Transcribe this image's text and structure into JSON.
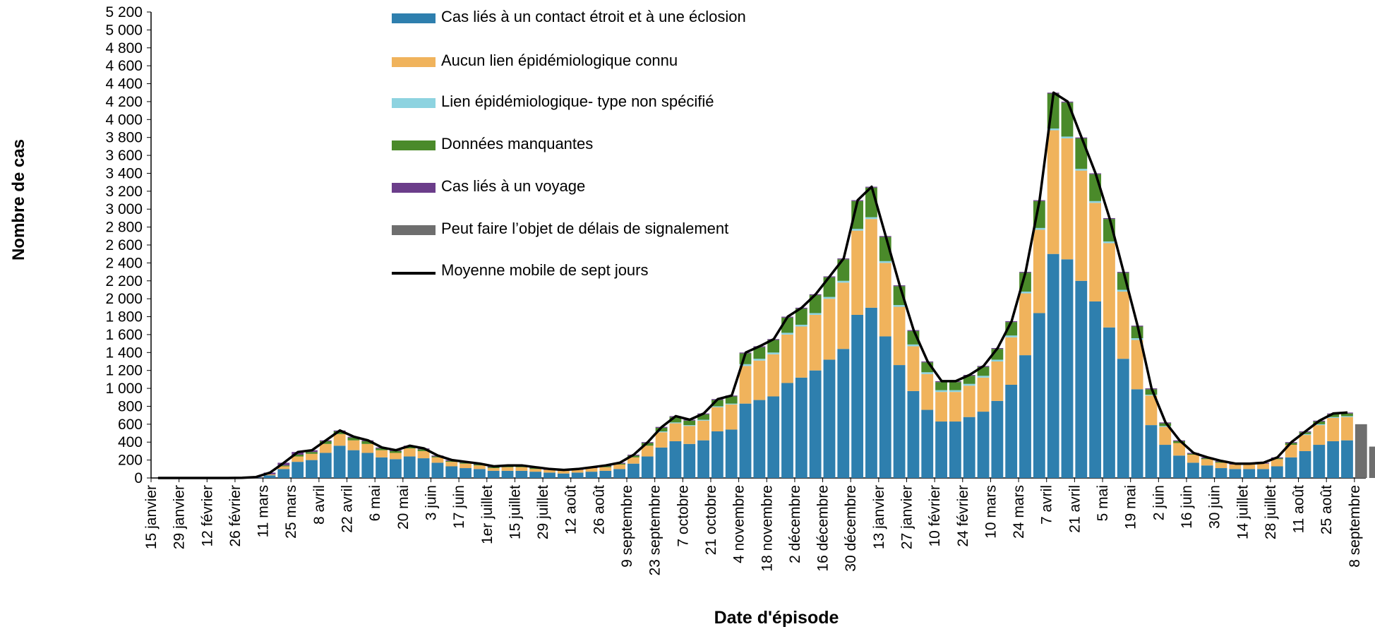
{
  "chart_data": {
    "type": "bar",
    "stacked": true,
    "grid": false,
    "y_label": "Nombre de cas",
    "x_label": "Date d'épisode",
    "ylim": [
      0,
      5200
    ],
    "yticks": [
      0,
      {
        "value": 200,
        "label": "200"
      },
      {
        "value": 400,
        "label": "400"
      },
      {
        "value": 600,
        "label": "600"
      },
      {
        "value": 800,
        "label": "800"
      },
      {
        "value": 1000,
        "label": "1 000"
      },
      {
        "value": 1200,
        "label": "1 200"
      },
      {
        "value": 1400,
        "label": "1 400"
      },
      {
        "value": 1600,
        "label": "1 600"
      },
      {
        "value": 1800,
        "label": "1 800"
      },
      {
        "value": 2000,
        "label": "2 000"
      },
      {
        "value": 2200,
        "label": "2 200"
      },
      {
        "value": 2400,
        "label": "2 400"
      },
      {
        "value": 2600,
        "label": "2 600"
      },
      {
        "value": 2800,
        "label": "2 800"
      },
      {
        "value": 3000,
        "label": "3 000"
      },
      {
        "value": 3200,
        "label": "3 200"
      },
      {
        "value": 3400,
        "label": "3 400"
      },
      {
        "value": 3600,
        "label": "3 600"
      },
      {
        "value": 3800,
        "label": "3 800"
      },
      {
        "value": 4000,
        "label": "4 000"
      },
      {
        "value": 4200,
        "label": "4 200"
      },
      {
        "value": 4400,
        "label": "4 400"
      },
      {
        "value": 4600,
        "label": "4 600"
      },
      {
        "value": 4800,
        "label": "4 800"
      },
      {
        "value": 5000,
        "label": "5 000"
      },
      {
        "value": 5200,
        "label": "5 200"
      }
    ],
    "categories": [
      "15 janvier",
      null,
      "29 janvier",
      null,
      "12 février",
      null,
      "26 février",
      null,
      "11 mars",
      null,
      "25 mars",
      null,
      "8 avril",
      null,
      "22 avril",
      null,
      "6 mai",
      null,
      "20 mai",
      null,
      "3 juin",
      null,
      "17 juin",
      null,
      "1er juillet",
      null,
      "15 juillet",
      null,
      "29 juillet",
      null,
      "12 août",
      null,
      "26 août",
      null,
      "9 septembre",
      null,
      "23 septembre",
      null,
      "7 octobre",
      null,
      "21 octobre",
      null,
      "4 novembre",
      null,
      "18 novembre",
      null,
      "2 décembre",
      null,
      "16 décembre",
      null,
      "30 décembre",
      null,
      "13 janvier",
      null,
      "27 janvier",
      null,
      "10 février",
      null,
      "24 février",
      null,
      "10 mars",
      null,
      "24 mars",
      null,
      "7 avril",
      null,
      "21 avril",
      null,
      "5 mai",
      null,
      "19 mai",
      null,
      "2 juin",
      null,
      "16 juin",
      null,
      "30 juin",
      null,
      "14 juillet",
      null,
      "28 juillet",
      null,
      "11 août",
      null,
      "25 août",
      null,
      "8 septembre",
      null
    ],
    "series": [
      {
        "name": "Cas liés à un contact étroit et à une éclosion",
        "color": "#2e7fae",
        "values": [
          0,
          0,
          0,
          0,
          0,
          0,
          2,
          5,
          30,
          100,
          180,
          200,
          280,
          360,
          310,
          280,
          230,
          210,
          240,
          220,
          170,
          130,
          110,
          100,
          80,
          80,
          80,
          70,
          60,
          50,
          60,
          70,
          80,
          100,
          160,
          240,
          340,
          410,
          380,
          420,
          520,
          540,
          830,
          870,
          910,
          1060,
          1120,
          1200,
          1320,
          1440,
          1820,
          1900,
          1580,
          1260,
          970,
          760,
          630,
          630,
          680,
          740,
          860,
          1040,
          1370,
          1840,
          2500,
          2440,
          2200,
          1970,
          1680,
          1330,
          990,
          590,
          370,
          250,
          170,
          140,
          110,
          100,
          100,
          100,
          130,
          230,
          300,
          370,
          410,
          420,
          0,
          0
        ]
      },
      {
        "name": "Aucun lien épidémiologique connu",
        "color": "#f0b35c",
        "values": [
          0,
          0,
          0,
          0,
          0,
          0,
          0,
          0,
          10,
          30,
          60,
          70,
          100,
          130,
          110,
          100,
          80,
          70,
          90,
          80,
          60,
          50,
          50,
          40,
          30,
          40,
          40,
          30,
          30,
          30,
          30,
          40,
          40,
          50,
          70,
          120,
          170,
          200,
          200,
          220,
          270,
          280,
          420,
          440,
          470,
          540,
          570,
          620,
          680,
          740,
          940,
          990,
          820,
          650,
          500,
          400,
          330,
          330,
          350,
          380,
          440,
          530,
          690,
          930,
          1380,
          1350,
          1230,
          1100,
          940,
          750,
          550,
          330,
          200,
          140,
          90,
          70,
          60,
          50,
          50,
          60,
          80,
          140,
          180,
          220,
          260,
          260,
          0,
          0
        ]
      },
      {
        "name": "Lien épidémiologique- type non spécifié",
        "color": "#8dd3e0",
        "values": [
          0,
          0,
          0,
          0,
          0,
          0,
          0,
          0,
          0,
          0,
          0,
          0,
          0,
          0,
          0,
          0,
          0,
          0,
          0,
          0,
          0,
          0,
          0,
          0,
          0,
          0,
          0,
          0,
          0,
          0,
          0,
          0,
          0,
          0,
          0,
          0,
          10,
          10,
          10,
          10,
          10,
          10,
          20,
          20,
          20,
          20,
          20,
          20,
          20,
          20,
          20,
          20,
          20,
          20,
          20,
          20,
          20,
          20,
          20,
          20,
          20,
          20,
          20,
          20,
          20,
          20,
          20,
          20,
          20,
          20,
          20,
          10,
          10,
          0,
          0,
          0,
          0,
          0,
          0,
          0,
          0,
          0,
          10,
          10,
          10,
          10,
          0,
          0
        ]
      },
      {
        "name": "Données manquantes",
        "color": "#4a8a2a",
        "values": [
          0,
          0,
          0,
          0,
          0,
          0,
          0,
          0,
          0,
          10,
          20,
          20,
          30,
          30,
          30,
          30,
          20,
          20,
          20,
          20,
          10,
          10,
          10,
          10,
          10,
          10,
          10,
          10,
          0,
          0,
          0,
          0,
          10,
          10,
          20,
          30,
          40,
          60,
          50,
          60,
          70,
          80,
          120,
          130,
          140,
          170,
          180,
          200,
          220,
          240,
          310,
          330,
          270,
          210,
          150,
          110,
          90,
          90,
          90,
          100,
          120,
          150,
          210,
          300,
          390,
          380,
          340,
          300,
          250,
          190,
          130,
          60,
          30,
          20,
          10,
          10,
          10,
          0,
          0,
          0,
          10,
          20,
          20,
          30,
          30,
          30,
          0,
          0
        ]
      },
      {
        "name": "Cas liés à un voyage",
        "color": "#6b3d8a",
        "values": [
          0,
          0,
          0,
          0,
          0,
          0,
          0,
          5,
          20,
          30,
          30,
          20,
          10,
          10,
          10,
          10,
          10,
          10,
          10,
          10,
          10,
          10,
          10,
          10,
          10,
          10,
          10,
          10,
          10,
          10,
          10,
          10,
          10,
          10,
          10,
          10,
          10,
          10,
          10,
          10,
          10,
          10,
          10,
          10,
          10,
          10,
          10,
          10,
          10,
          10,
          10,
          10,
          10,
          10,
          10,
          10,
          10,
          10,
          10,
          10,
          10,
          10,
          10,
          10,
          10,
          10,
          10,
          10,
          10,
          10,
          10,
          10,
          10,
          10,
          10,
          10,
          10,
          10,
          10,
          10,
          10,
          10,
          10,
          10,
          10,
          10,
          0,
          0
        ]
      },
      {
        "name": "Peut faire l’objet de délais de signalement",
        "color": "#6e6e6e",
        "values": [
          0,
          0,
          0,
          0,
          0,
          0,
          0,
          0,
          0,
          0,
          0,
          0,
          0,
          0,
          0,
          0,
          0,
          0,
          0,
          0,
          0,
          0,
          0,
          0,
          0,
          0,
          0,
          0,
          0,
          0,
          0,
          0,
          0,
          0,
          0,
          0,
          0,
          0,
          0,
          0,
          0,
          0,
          0,
          0,
          0,
          0,
          0,
          0,
          0,
          0,
          0,
          0,
          0,
          0,
          0,
          0,
          0,
          0,
          0,
          0,
          0,
          0,
          0,
          0,
          0,
          0,
          0,
          0,
          0,
          0,
          0,
          0,
          0,
          0,
          0,
          0,
          0,
          0,
          0,
          0,
          0,
          0,
          0,
          0,
          0,
          0,
          600,
          350
        ]
      },
      {
        "name": "Moyenne mobile de sept jours",
        "type": "line",
        "color": "#000000",
        "values": [
          0,
          0,
          0,
          0,
          0,
          0,
          2,
          10,
          60,
          170,
          290,
          310,
          420,
          530,
          460,
          420,
          340,
          310,
          360,
          330,
          250,
          200,
          180,
          160,
          130,
          140,
          140,
          120,
          100,
          90,
          100,
          120,
          140,
          170,
          260,
          400,
          570,
          690,
          650,
          720,
          880,
          920,
          1400,
          1470,
          1550,
          1800,
          1900,
          2050,
          2250,
          2450,
          3100,
          3250,
          2700,
          2150,
          1650,
          1300,
          1080,
          1080,
          1150,
          1250,
          1450,
          1750,
          2300,
          3100,
          4300,
          4200,
          3800,
          3400,
          2900,
          2300,
          1700,
          1000,
          620,
          420,
          280,
          230,
          190,
          160,
          160,
          170,
          230,
          400,
          520,
          640,
          720,
          730,
          null,
          null
        ]
      }
    ]
  }
}
